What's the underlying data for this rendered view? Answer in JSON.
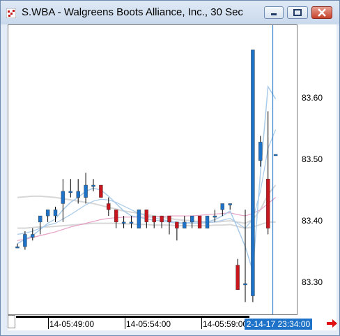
{
  "window": {
    "title": "S.WBA - Walgreens Boots Alliance, Inc., 30 Sec",
    "icons": [
      "app-icon",
      "restore-icon",
      "maximize-icon",
      "close-icon"
    ]
  },
  "colors": {
    "up": "#1e73c9",
    "down": "#c8161e",
    "ma_light": "#a9cbe9",
    "ma_pink": "#e79fc4",
    "ma_gray": "#d7d7d7",
    "crosshair": "#1e73c9"
  },
  "chart_data": {
    "type": "candlestick",
    "y_axis_labels": [
      "83.60",
      "83.50",
      "83.40",
      "83.30"
    ],
    "y_axis_values": [
      83.6,
      83.5,
      83.4,
      83.3
    ],
    "ylim": [
      83.25,
      83.72
    ],
    "x_axis_labels": [
      "14-05:49:00",
      "14-05:54:00",
      "14-05:59:00"
    ],
    "cursor_time_label": "2-14-17 23:34:00",
    "candles": [
      {
        "o": 83.36,
        "h": 83.365,
        "l": 83.36,
        "c": 83.36
      },
      {
        "o": 83.36,
        "h": 83.385,
        "l": 83.355,
        "c": 83.38
      },
      {
        "o": 83.375,
        "h": 83.39,
        "l": 83.37,
        "c": 83.38
      },
      {
        "o": 83.4,
        "h": 83.41,
        "l": 83.38,
        "c": 83.41
      },
      {
        "o": 83.41,
        "h": 83.42,
        "l": 83.4,
        "c": 83.42
      },
      {
        "o": 83.41,
        "h": 83.425,
        "l": 83.4,
        "c": 83.42
      },
      {
        "o": 83.43,
        "h": 83.47,
        "l": 83.4,
        "c": 83.45
      },
      {
        "o": 83.45,
        "h": 83.47,
        "l": 83.44,
        "c": 83.45
      },
      {
        "o": 83.44,
        "h": 83.47,
        "l": 83.43,
        "c": 83.45
      },
      {
        "o": 83.44,
        "h": 83.48,
        "l": 83.43,
        "c": 83.46
      },
      {
        "o": 83.46,
        "h": 83.47,
        "l": 83.45,
        "c": 83.46
      },
      {
        "o": 83.46,
        "h": 83.46,
        "l": 83.44,
        "c": 83.44
      },
      {
        "o": 83.43,
        "h": 83.44,
        "l": 83.41,
        "c": 83.42
      },
      {
        "o": 83.42,
        "h": 83.42,
        "l": 83.39,
        "c": 83.4
      },
      {
        "o": 83.4,
        "h": 83.41,
        "l": 83.39,
        "c": 83.4
      },
      {
        "o": 83.4,
        "h": 83.41,
        "l": 83.39,
        "c": 83.4
      },
      {
        "o": 83.39,
        "h": 83.42,
        "l": 83.39,
        "c": 83.42
      },
      {
        "o": 83.42,
        "h": 83.42,
        "l": 83.39,
        "c": 83.4
      },
      {
        "o": 83.41,
        "h": 83.41,
        "l": 83.39,
        "c": 83.4
      },
      {
        "o": 83.41,
        "h": 83.41,
        "l": 83.39,
        "c": 83.4
      },
      {
        "o": 83.41,
        "h": 83.41,
        "l": 83.38,
        "c": 83.4
      },
      {
        "o": 83.4,
        "h": 83.4,
        "l": 83.37,
        "c": 83.39
      },
      {
        "o": 83.39,
        "h": 83.41,
        "l": 83.39,
        "c": 83.4
      },
      {
        "o": 83.4,
        "h": 83.41,
        "l": 83.39,
        "c": 83.41
      },
      {
        "o": 83.41,
        "h": 83.41,
        "l": 83.39,
        "c": 83.39
      },
      {
        "o": 83.39,
        "h": 83.41,
        "l": 83.39,
        "c": 83.41
      },
      {
        "o": 83.41,
        "h": 83.42,
        "l": 83.4,
        "c": 83.41
      },
      {
        "o": 83.42,
        "h": 83.43,
        "l": 83.41,
        "c": 83.43
      },
      {
        "o": 83.43,
        "h": 83.43,
        "l": 83.42,
        "c": 83.43
      },
      {
        "o": 83.33,
        "h": 83.34,
        "l": 83.29,
        "c": 83.29
      },
      {
        "o": 83.3,
        "h": 83.42,
        "l": 83.27,
        "c": 83.3
      },
      {
        "o": 83.28,
        "h": 83.68,
        "l": 83.27,
        "c": 83.68
      },
      {
        "o": 83.5,
        "h": 83.54,
        "l": 83.49,
        "c": 83.53
      },
      {
        "o": 83.47,
        "h": 83.58,
        "l": 83.38,
        "c": 83.39
      },
      {
        "o": 83.51,
        "h": 83.51,
        "l": 83.51,
        "c": 83.51
      }
    ],
    "ma_fast": [
      83.365,
      83.372,
      83.378,
      83.388,
      83.398,
      83.405,
      83.42,
      83.432,
      83.44,
      83.45,
      83.455,
      83.452,
      83.442,
      83.43,
      83.418,
      83.41,
      83.408,
      83.405,
      83.403,
      83.402,
      83.4,
      83.398,
      83.398,
      83.4,
      83.4,
      83.4,
      83.404,
      83.41,
      83.418,
      83.39,
      83.36,
      83.32,
      83.48,
      83.62,
      83.6
    ],
    "ma_mid": [
      83.38,
      83.382,
      83.385,
      83.39,
      83.395,
      83.398,
      83.405,
      83.412,
      83.42,
      83.428,
      83.434,
      83.437,
      83.436,
      83.432,
      83.426,
      83.42,
      83.414,
      83.41,
      83.407,
      83.404,
      83.402,
      83.4,
      83.398,
      83.398,
      83.398,
      83.399,
      83.4,
      83.403,
      83.406,
      83.398,
      83.39,
      83.405,
      83.45,
      83.52,
      83.55
    ],
    "ma_pink": [
      83.37,
      83.372,
      83.375,
      83.378,
      83.381,
      83.384,
      83.388,
      83.392,
      83.395,
      83.398,
      83.401,
      83.404,
      83.406,
      83.407,
      83.408,
      83.408,
      83.408,
      83.408,
      83.408,
      83.409,
      83.41,
      83.41,
      83.41,
      83.41,
      83.411,
      83.412,
      83.413,
      83.414,
      83.415,
      83.412,
      83.41,
      83.414,
      83.42,
      83.43,
      83.44
    ],
    "ma_gray1": [
      83.44,
      83.441,
      83.442,
      83.442,
      83.441,
      83.44,
      83.438,
      83.436,
      83.434,
      83.432,
      83.43,
      83.427,
      83.424,
      83.421,
      83.418,
      83.416,
      83.414,
      83.412,
      83.41,
      83.408,
      83.406,
      83.404,
      83.403,
      83.402,
      83.401,
      83.4,
      83.4,
      83.401,
      83.402,
      83.4,
      83.398,
      83.404,
      83.42,
      83.445,
      83.46
    ],
    "ma_gray2": [
      83.39,
      83.39,
      83.391,
      83.392,
      83.392,
      83.393,
      83.394,
      83.395,
      83.396,
      83.397,
      83.398,
      83.398,
      83.398,
      83.398,
      83.397,
      83.397,
      83.396,
      83.396,
      83.395,
      83.395,
      83.395,
      83.394,
      83.394,
      83.394,
      83.394,
      83.394,
      83.395,
      83.395,
      83.396,
      83.393,
      83.39,
      83.392,
      83.396,
      83.4,
      83.4
    ],
    "grid": false
  }
}
